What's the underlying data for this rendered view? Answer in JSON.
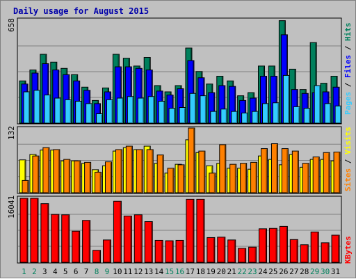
{
  "title": "Daily usage for August 2015",
  "colors": {
    "pages": "#33ccff",
    "files": "#0000ff",
    "hits": "#00805c",
    "sites": "#ffff00",
    "visits": "#ff8000",
    "kbytes": "#ff0000",
    "weekend_label": "#00805c",
    "weekday_label": "#000000",
    "panel_bg": "#c0c0c0"
  },
  "labels": {
    "hits_max": "658",
    "visits_max": "132",
    "kbytes_max": "16041",
    "side_top": {
      "pages": "Pages",
      "sep1": " / ",
      "files": "Files",
      "sep2": " / ",
      "hits": "Hits"
    },
    "side_mid": {
      "sites": "Sites",
      "sep": " / ",
      "visits": "Visits"
    },
    "side_bot": {
      "kbytes": "KBytes"
    }
  },
  "chart_data": {
    "type": "bar",
    "title": "Daily usage for August 2015",
    "categories": [
      "1",
      "2",
      "3",
      "4",
      "5",
      "6",
      "7",
      "8",
      "9",
      "10",
      "11",
      "12",
      "13",
      "14",
      "15",
      "16",
      "17",
      "18",
      "19",
      "20",
      "21",
      "22",
      "23",
      "24",
      "25",
      "26",
      "27",
      "28",
      "29",
      "30",
      "31"
    ],
    "weekend_days": [
      1,
      2,
      8,
      9,
      15,
      16,
      22,
      23,
      29,
      30
    ],
    "panels": [
      {
        "name": "hits_files_pages",
        "ymax": 658,
        "series": [
          {
            "name": "Hits",
            "values": [
              270,
              340,
              440,
              390,
              350,
              310,
              230,
              145,
              225,
              440,
              415,
              365,
              420,
              240,
              200,
              240,
              480,
              330,
              250,
              300,
              270,
              175,
              195,
              365,
              365,
              655,
              345,
              215,
              515,
              255,
              300
            ]
          },
          {
            "name": "Files",
            "values": [
              250,
              320,
              380,
              340,
              310,
              270,
              210,
              125,
              200,
              360,
              360,
              350,
              340,
              205,
              180,
              220,
              400,
              290,
              195,
              240,
              235,
              145,
              160,
              300,
              300,
              565,
              215,
              190,
              195,
              200,
              230
            ]
          },
          {
            "name": "Pages",
            "values": [
              200,
              210,
              180,
              160,
              150,
              140,
              125,
              60,
              150,
              160,
              170,
              160,
              170,
              140,
              95,
              100,
              190,
              175,
              75,
              90,
              75,
              65,
              75,
              125,
              130,
              305,
              105,
              95,
              240,
              125,
              110
            ]
          }
        ]
      },
      {
        "name": "visits_sites",
        "ymax": 132,
        "series": [
          {
            "name": "Visits",
            "values": [
              25,
              75,
              92,
              88,
              68,
              65,
              62,
              42,
              63,
              88,
              95,
              88,
              88,
              77,
              50,
              57,
              132,
              85,
              40,
              98,
              58,
              60,
              62,
              90,
              100,
              90,
              85,
              60,
              73,
              82,
              83
            ]
          },
          {
            "name": "Sites",
            "values": [
              67,
              78,
              87,
              87,
              65,
              65,
              60,
              47,
              55,
              85,
              92,
              88,
              95,
              60,
              40,
              58,
              108,
              82,
              55,
              60,
              50,
              50,
              48,
              75,
              68,
              57,
              78,
              52,
              68,
              68,
              65
            ]
          }
        ]
      },
      {
        "name": "kbytes",
        "ymax": 16041,
        "series": [
          {
            "name": "KBytes",
            "values": [
              16041,
              16041,
              14700,
              12000,
              11900,
              7800,
              10500,
              3000,
              5600,
              15300,
              11600,
              11900,
              10200,
              5500,
              5400,
              5500,
              15800,
              15800,
              6200,
              6300,
              5600,
              3500,
              3800,
              8400,
              8500,
              9000,
              5700,
              4400,
              7600,
              4900,
              6800
            ]
          }
        ]
      }
    ]
  }
}
